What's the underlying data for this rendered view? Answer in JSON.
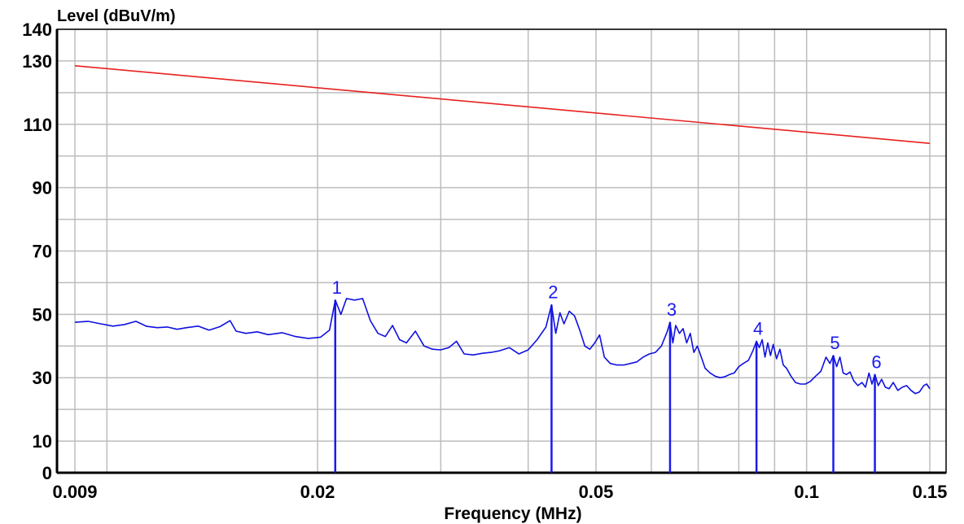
{
  "chart_data": {
    "type": "line",
    "xlabel": "Frequency (MHz)",
    "ylabel": "Level (dBuV/m)",
    "x_scale": "log",
    "xlim": [
      0.009,
      0.15
    ],
    "ylim": [
      0,
      140
    ],
    "x_ticks": [
      {
        "value": 0.009,
        "label": "0.009"
      },
      {
        "value": 0.02,
        "label": "0.02"
      },
      {
        "value": 0.05,
        "label": "0.05"
      },
      {
        "value": 0.1,
        "label": "0.1"
      },
      {
        "value": 0.15,
        "label": "0.15"
      }
    ],
    "y_ticks": [
      {
        "value": 0,
        "label": "0"
      },
      {
        "value": 10,
        "label": "10"
      },
      {
        "value": 30,
        "label": "30"
      },
      {
        "value": 50,
        "label": "50"
      },
      {
        "value": 70,
        "label": "70"
      },
      {
        "value": 90,
        "label": "90"
      },
      {
        "value": 110,
        "label": "110"
      },
      {
        "value": 130,
        "label": "130"
      },
      {
        "value": 140,
        "label": "140"
      }
    ],
    "y_grid": [
      0,
      10,
      20,
      30,
      40,
      50,
      60,
      70,
      80,
      90,
      100,
      110,
      120,
      130,
      140
    ],
    "x_grid": [
      0.009,
      0.01,
      0.02,
      0.03,
      0.04,
      0.05,
      0.06,
      0.07,
      0.08,
      0.09,
      0.1,
      0.15
    ],
    "grid": true,
    "limit_line": {
      "color": "#e82020",
      "points": [
        [
          0.009,
          128.5
        ],
        [
          0.15,
          104
        ]
      ]
    },
    "series": [
      {
        "color": "#1010e0",
        "points": [
          [
            0.009,
            47.5
          ],
          [
            0.0094,
            47.8
          ],
          [
            0.0098,
            47.0
          ],
          [
            0.0102,
            46.3
          ],
          [
            0.0106,
            46.8
          ],
          [
            0.011,
            47.8
          ],
          [
            0.0114,
            46.2
          ],
          [
            0.0118,
            45.8
          ],
          [
            0.0122,
            46.0
          ],
          [
            0.0126,
            45.3
          ],
          [
            0.013,
            45.8
          ],
          [
            0.0135,
            46.3
          ],
          [
            0.014,
            45.0
          ],
          [
            0.0145,
            46.1
          ],
          [
            0.015,
            48.0
          ],
          [
            0.0153,
            44.7
          ],
          [
            0.0158,
            44.0
          ],
          [
            0.0164,
            44.5
          ],
          [
            0.017,
            43.6
          ],
          [
            0.0178,
            44.2
          ],
          [
            0.0186,
            43.0
          ],
          [
            0.0194,
            42.4
          ],
          [
            0.0202,
            42.8
          ],
          [
            0.0208,
            45.0
          ],
          [
            0.0212,
            54.5
          ],
          [
            0.0216,
            50.0
          ],
          [
            0.022,
            55.0
          ],
          [
            0.0226,
            54.5
          ],
          [
            0.0232,
            55.0
          ],
          [
            0.0238,
            48.0
          ],
          [
            0.0244,
            44.0
          ],
          [
            0.025,
            43.0
          ],
          [
            0.0256,
            46.5
          ],
          [
            0.0262,
            42.0
          ],
          [
            0.0268,
            41.0
          ],
          [
            0.0276,
            44.7
          ],
          [
            0.0284,
            40.0
          ],
          [
            0.0292,
            39.0
          ],
          [
            0.03,
            38.8
          ],
          [
            0.0308,
            39.5
          ],
          [
            0.0316,
            41.5
          ],
          [
            0.0324,
            37.5
          ],
          [
            0.0334,
            37.2
          ],
          [
            0.0344,
            37.7
          ],
          [
            0.0354,
            38.0
          ],
          [
            0.0364,
            38.5
          ],
          [
            0.0376,
            39.5
          ],
          [
            0.0388,
            37.5
          ],
          [
            0.04,
            38.8
          ],
          [
            0.0412,
            42.0
          ],
          [
            0.0424,
            46.0
          ],
          [
            0.0432,
            53.0
          ],
          [
            0.0438,
            44.0
          ],
          [
            0.0444,
            50.5
          ],
          [
            0.045,
            47.0
          ],
          [
            0.0458,
            51.0
          ],
          [
            0.0466,
            49.5
          ],
          [
            0.0474,
            45.0
          ],
          [
            0.0482,
            40.0
          ],
          [
            0.049,
            39.0
          ],
          [
            0.0498,
            41.0
          ],
          [
            0.0506,
            43.5
          ],
          [
            0.0514,
            36.5
          ],
          [
            0.0524,
            34.5
          ],
          [
            0.0536,
            34.0
          ],
          [
            0.0548,
            34.0
          ],
          [
            0.056,
            34.5
          ],
          [
            0.0572,
            35.0
          ],
          [
            0.0584,
            36.5
          ],
          [
            0.0596,
            37.5
          ],
          [
            0.0608,
            38.0
          ],
          [
            0.062,
            40.0
          ],
          [
            0.0632,
            44.5
          ],
          [
            0.0638,
            47.5
          ],
          [
            0.0644,
            41.0
          ],
          [
            0.065,
            46.5
          ],
          [
            0.0658,
            44.0
          ],
          [
            0.0666,
            45.5
          ],
          [
            0.0674,
            41.0
          ],
          [
            0.0682,
            44.0
          ],
          [
            0.069,
            38.0
          ],
          [
            0.0698,
            40.0
          ],
          [
            0.0706,
            37.0
          ],
          [
            0.0716,
            33.0
          ],
          [
            0.0728,
            31.5
          ],
          [
            0.074,
            30.5
          ],
          [
            0.0752,
            30.0
          ],
          [
            0.0764,
            30.3
          ],
          [
            0.0776,
            31.0
          ],
          [
            0.0788,
            31.5
          ],
          [
            0.08,
            33.5
          ],
          [
            0.0812,
            34.5
          ],
          [
            0.0826,
            35.5
          ],
          [
            0.0838,
            38.5
          ],
          [
            0.0848,
            41.5
          ],
          [
            0.0856,
            39.5
          ],
          [
            0.0864,
            42.0
          ],
          [
            0.0872,
            36.5
          ],
          [
            0.088,
            41.0
          ],
          [
            0.0888,
            37.0
          ],
          [
            0.0896,
            40.5
          ],
          [
            0.0906,
            36.0
          ],
          [
            0.0916,
            39.0
          ],
          [
            0.0926,
            34.0
          ],
          [
            0.0936,
            33.0
          ],
          [
            0.095,
            30.5
          ],
          [
            0.0964,
            28.5
          ],
          [
            0.098,
            28.0
          ],
          [
            0.0996,
            28.0
          ],
          [
            0.1012,
            28.8
          ],
          [
            0.103,
            30.5
          ],
          [
            0.1048,
            32.0
          ],
          [
            0.1066,
            36.5
          ],
          [
            0.108,
            34.5
          ],
          [
            0.1092,
            37.0
          ],
          [
            0.1104,
            33.5
          ],
          [
            0.1116,
            36.5
          ],
          [
            0.1128,
            31.5
          ],
          [
            0.114,
            31.0
          ],
          [
            0.1154,
            31.8
          ],
          [
            0.1168,
            29.0
          ],
          [
            0.1184,
            27.5
          ],
          [
            0.12,
            28.5
          ],
          [
            0.1214,
            27.0
          ],
          [
            0.1228,
            31.5
          ],
          [
            0.124,
            28.0
          ],
          [
            0.1252,
            31.0
          ],
          [
            0.1266,
            27.5
          ],
          [
            0.128,
            29.5
          ],
          [
            0.1296,
            27.0
          ],
          [
            0.1312,
            26.5
          ],
          [
            0.133,
            28.5
          ],
          [
            0.135,
            26.0
          ],
          [
            0.137,
            27.0
          ],
          [
            0.139,
            27.5
          ],
          [
            0.141,
            26.0
          ],
          [
            0.143,
            25.0
          ],
          [
            0.145,
            25.5
          ],
          [
            0.147,
            27.5
          ],
          [
            0.1485,
            28.0
          ],
          [
            0.15,
            26.5
          ]
        ]
      }
    ],
    "markers": [
      {
        "label": "1",
        "x": 0.0212,
        "y": 54.5
      },
      {
        "label": "2",
        "x": 0.0432,
        "y": 53.0
      },
      {
        "label": "3",
        "x": 0.0638,
        "y": 47.5
      },
      {
        "label": "4",
        "x": 0.0848,
        "y": 41.5
      },
      {
        "label": "5",
        "x": 0.1092,
        "y": 37.0
      },
      {
        "label": "6",
        "x": 0.1252,
        "y": 31.0
      }
    ],
    "marker_color": "#1a1aee"
  }
}
